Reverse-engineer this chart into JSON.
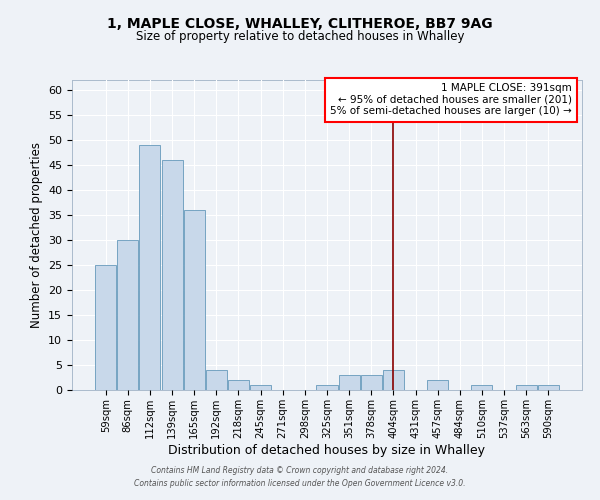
{
  "title": "1, MAPLE CLOSE, WHALLEY, CLITHEROE, BB7 9AG",
  "subtitle": "Size of property relative to detached houses in Whalley",
  "xlabel": "Distribution of detached houses by size in Whalley",
  "ylabel": "Number of detached properties",
  "bin_labels": [
    "59sqm",
    "86sqm",
    "112sqm",
    "139sqm",
    "165sqm",
    "192sqm",
    "218sqm",
    "245sqm",
    "271sqm",
    "298sqm",
    "325sqm",
    "351sqm",
    "378sqm",
    "404sqm",
    "431sqm",
    "457sqm",
    "484sqm",
    "510sqm",
    "537sqm",
    "563sqm",
    "590sqm"
  ],
  "bar_values": [
    25,
    30,
    49,
    46,
    36,
    4,
    2,
    1,
    0,
    0,
    1,
    3,
    3,
    4,
    0,
    2,
    0,
    1,
    0,
    1,
    1
  ],
  "bar_color": "#c8d8ea",
  "bar_edge_color": "#6699bb",
  "ylim": [
    0,
    62
  ],
  "yticks": [
    0,
    5,
    10,
    15,
    20,
    25,
    30,
    35,
    40,
    45,
    50,
    55,
    60
  ],
  "red_line_x": 13.0,
  "annotation_title": "1 MAPLE CLOSE: 391sqm",
  "annotation_line1": "← 95% of detached houses are smaller (201)",
  "annotation_line2": "5% of semi-detached houses are larger (10) →",
  "bg_color": "#eef2f7",
  "grid_color": "#ffffff",
  "footer_line1": "Contains HM Land Registry data © Crown copyright and database right 2024.",
  "footer_line2": "Contains public sector information licensed under the Open Government Licence v3.0."
}
